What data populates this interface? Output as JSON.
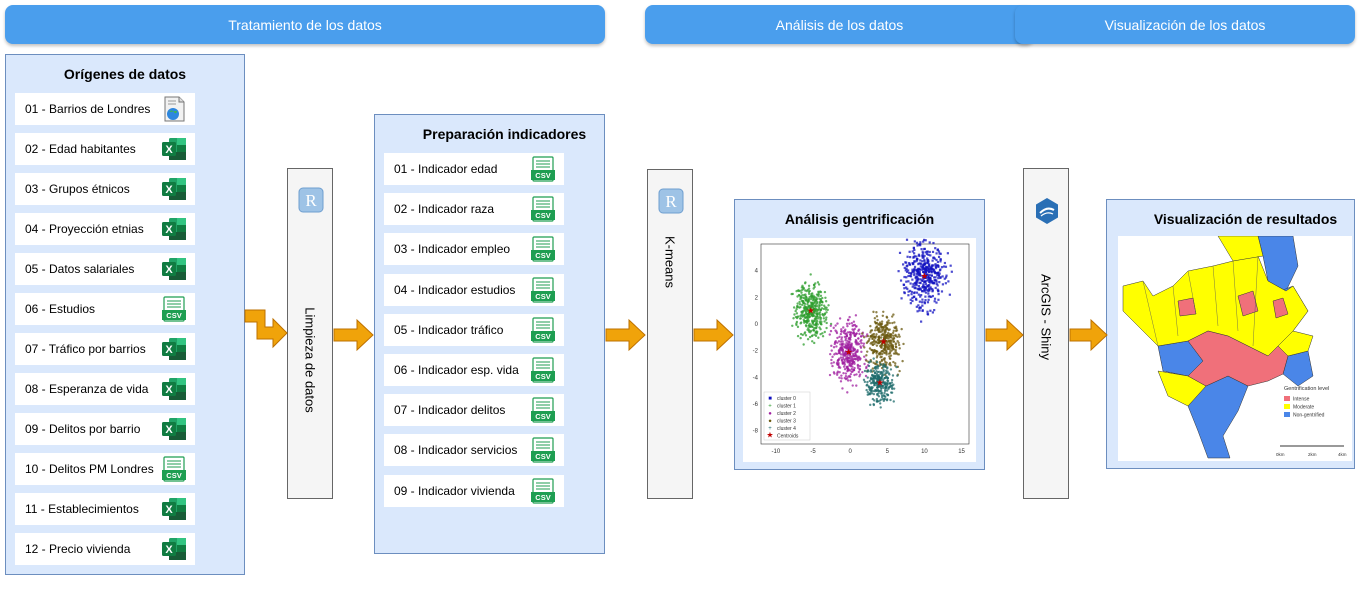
{
  "headers": {
    "treatment": "Tratamiento de los datos",
    "analysis": "Análisis de los datos",
    "visualization": "Visualización de los datos"
  },
  "sources": {
    "title": "Orígenes de datos",
    "items": [
      {
        "label": "01 - Barrios de Londres",
        "icon": "geo-file-icon"
      },
      {
        "label": "02 - Edad habitantes",
        "icon": "excel-icon"
      },
      {
        "label": "03 - Grupos étnicos",
        "icon": "excel-icon"
      },
      {
        "label": "04 - Proyección etnias",
        "icon": "excel-icon"
      },
      {
        "label": "05 - Datos salariales",
        "icon": "excel-icon"
      },
      {
        "label": "06 - Estudios",
        "icon": "csv-icon"
      },
      {
        "label": "07 - Tráfico por barrios",
        "icon": "excel-icon"
      },
      {
        "label": "08 - Esperanza de vida",
        "icon": "excel-icon"
      },
      {
        "label": "09 - Delitos por barrio",
        "icon": "excel-icon"
      },
      {
        "label": "10 - Delitos PM Londres",
        "icon": "csv-icon"
      },
      {
        "label": "11 - Establecimientos",
        "icon": "excel-icon"
      },
      {
        "label": "12 - Precio vivienda",
        "icon": "excel-icon"
      }
    ]
  },
  "cleaning": {
    "label": "Limpieza de datos",
    "icon": "r-logo-icon"
  },
  "indicators": {
    "title": "Preparación indicadores",
    "items": [
      {
        "label": "01 - Indicador edad",
        "icon": "csv-icon"
      },
      {
        "label": "02 - Indicador raza",
        "icon": "csv-icon"
      },
      {
        "label": "03 - Indicador empleo",
        "icon": "csv-icon"
      },
      {
        "label": "04 - Indicador estudios",
        "icon": "csv-icon"
      },
      {
        "label": "05 - Indicador tráfico",
        "icon": "csv-icon"
      },
      {
        "label": "06 - Indicador esp. vida",
        "icon": "csv-icon"
      },
      {
        "label": "07 - Indicador delitos",
        "icon": "csv-icon"
      },
      {
        "label": "08 - Indicador servicios",
        "icon": "csv-icon"
      },
      {
        "label": "09 - Indicador vivienda",
        "icon": "csv-icon"
      }
    ]
  },
  "kmeans": {
    "label": "K-means",
    "icon": "r-logo-icon"
  },
  "analysis": {
    "title": "Análisis gentrificación",
    "plot": {
      "x_ticks": [
        "-10",
        "-5",
        "0",
        "5",
        "10",
        "15"
      ],
      "y_ticks": [
        "4",
        "2",
        "0",
        "-2",
        "-4",
        "-6",
        "-8"
      ],
      "legend": [
        "cluster 0",
        "cluster 1",
        "cluster 2",
        "cluster 3",
        "cluster 4",
        "Centroids"
      ],
      "colors": [
        "#1010c0",
        "#2e9e2e",
        "#a020a0",
        "#6b5a10",
        "#1e6b6b",
        "#c00000"
      ]
    }
  },
  "arcgis": {
    "label": "ArcGIS - Shiny",
    "icon": "shiny-logo-icon"
  },
  "results": {
    "title": "Visualización de resultados",
    "map": {
      "legend_title": "Gentrification level",
      "legend": [
        "Intense",
        "Moderate",
        "Non-gentrified"
      ],
      "colors": [
        "#f0707a",
        "#ffff00",
        "#4a86e8"
      ],
      "scale": [
        "0km",
        "2km",
        "4km"
      ]
    }
  }
}
